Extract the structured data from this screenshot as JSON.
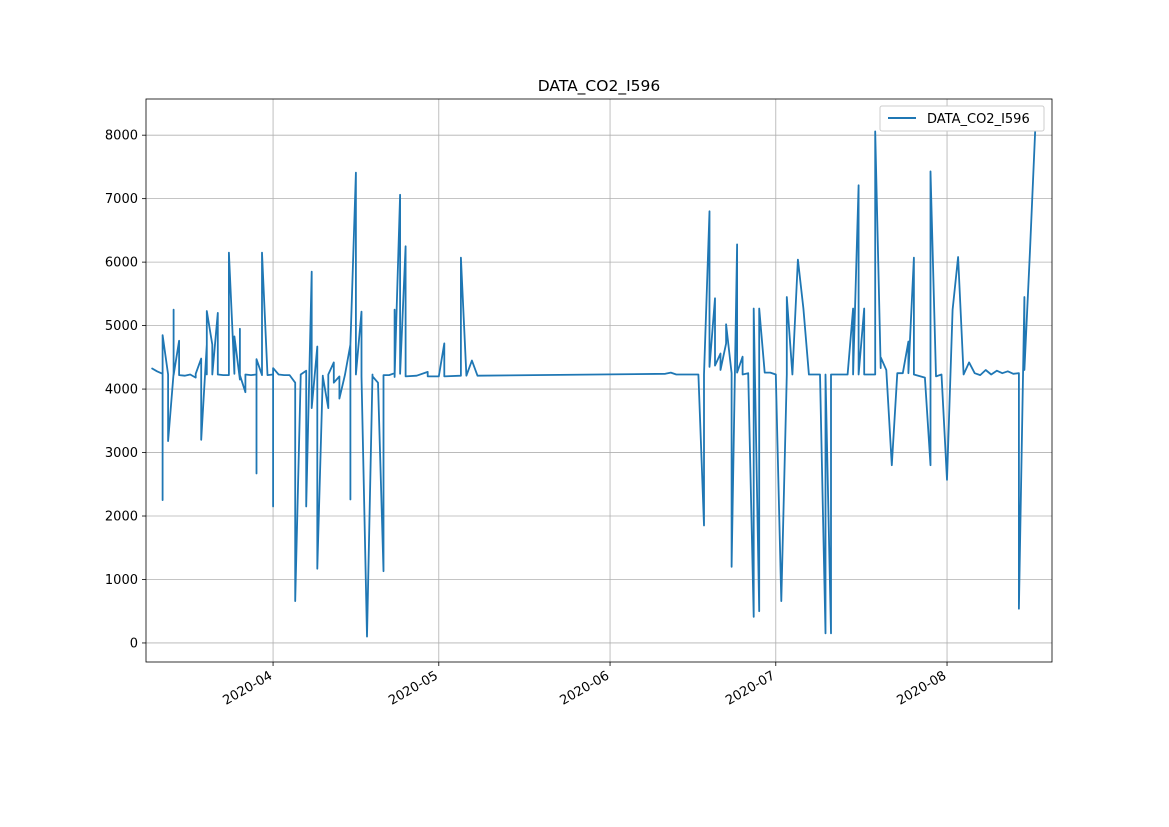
{
  "chart_data": {
    "type": "line",
    "title": "DATA_CO2_I596",
    "xlabel": "",
    "ylabel": "",
    "legend": {
      "placement": "top-right",
      "entries": [
        "DATA_CO2_I596"
      ]
    },
    "grid": true,
    "x_axis": {
      "type": "date",
      "range": [
        "2020-03-09",
        "2020-08-20"
      ],
      "ticks": [
        "2020-04-01",
        "2020-05-01",
        "2020-06-01",
        "2020-07-01",
        "2020-08-01"
      ],
      "tick_labels": [
        "2020-04",
        "2020-05",
        "2020-06",
        "2020-07",
        "2020-08"
      ]
    },
    "y_axis": {
      "range": [
        -300,
        8570
      ],
      "ticks": [
        0,
        1000,
        2000,
        3000,
        4000,
        5000,
        6000,
        7000,
        8000
      ],
      "tick_labels": [
        "0",
        "1000",
        "2000",
        "3000",
        "4000",
        "5000",
        "6000",
        "7000",
        "8000"
      ]
    },
    "series": [
      {
        "name": "DATA_CO2_I596",
        "color": "#1f77b4",
        "points": [
          [
            "2020-03-10",
            4330
          ],
          [
            "2020-03-11",
            4280
          ],
          [
            "2020-03-12",
            4240
          ],
          [
            "2020-03-12",
            2250
          ],
          [
            "2020-03-12",
            4850
          ],
          [
            "2020-03-13",
            4230
          ],
          [
            "2020-03-13",
            3180
          ],
          [
            "2020-03-14",
            4250
          ],
          [
            "2020-03-14",
            5250
          ],
          [
            "2020-03-14",
            4220
          ],
          [
            "2020-03-15",
            4760
          ],
          [
            "2020-03-15",
            4220
          ],
          [
            "2020-03-16",
            4210
          ],
          [
            "2020-03-17",
            4230
          ],
          [
            "2020-03-18",
            4180
          ],
          [
            "2020-03-18",
            4240
          ],
          [
            "2020-03-19",
            4480
          ],
          [
            "2020-03-19",
            3200
          ],
          [
            "2020-03-20",
            4700
          ],
          [
            "2020-03-20",
            4230
          ],
          [
            "2020-03-20",
            5230
          ],
          [
            "2020-03-21",
            4700
          ],
          [
            "2020-03-21",
            4230
          ],
          [
            "2020-03-22",
            5200
          ],
          [
            "2020-03-22",
            4230
          ],
          [
            "2020-03-23",
            4220
          ],
          [
            "2020-03-24",
            4220
          ],
          [
            "2020-03-24",
            6150
          ],
          [
            "2020-03-25",
            4240
          ],
          [
            "2020-03-25",
            4830
          ],
          [
            "2020-03-26",
            4150
          ],
          [
            "2020-03-26",
            4950
          ],
          [
            "2020-03-26",
            4220
          ],
          [
            "2020-03-27",
            3950
          ],
          [
            "2020-03-27",
            4230
          ],
          [
            "2020-03-28",
            4220
          ],
          [
            "2020-03-29",
            4230
          ],
          [
            "2020-03-29",
            2670
          ],
          [
            "2020-03-29",
            4470
          ],
          [
            "2020-03-30",
            4220
          ],
          [
            "2020-03-30",
            6150
          ],
          [
            "2020-03-31",
            4220
          ],
          [
            "2020-04-01",
            4230
          ],
          [
            "2020-04-01",
            2150
          ],
          [
            "2020-04-01",
            4330
          ],
          [
            "2020-04-02",
            4230
          ],
          [
            "2020-04-03",
            4220
          ],
          [
            "2020-04-04",
            4220
          ],
          [
            "2020-04-05",
            4100
          ],
          [
            "2020-04-05",
            660
          ],
          [
            "2020-04-06",
            4200
          ],
          [
            "2020-04-06",
            4230
          ],
          [
            "2020-04-07",
            4290
          ],
          [
            "2020-04-07",
            2150
          ],
          [
            "2020-04-08",
            5850
          ],
          [
            "2020-04-08",
            3700
          ],
          [
            "2020-04-09",
            4670
          ],
          [
            "2020-04-09",
            1170
          ],
          [
            "2020-04-10",
            4210
          ],
          [
            "2020-04-10",
            4200
          ],
          [
            "2020-04-11",
            3700
          ],
          [
            "2020-04-11",
            4230
          ],
          [
            "2020-04-12",
            4420
          ],
          [
            "2020-04-12",
            4100
          ],
          [
            "2020-04-13",
            4200
          ],
          [
            "2020-04-13",
            3850
          ],
          [
            "2020-04-14",
            4220
          ],
          [
            "2020-04-15",
            4700
          ],
          [
            "2020-04-15",
            2260
          ],
          [
            "2020-04-15",
            4700
          ],
          [
            "2020-04-16",
            7410
          ],
          [
            "2020-04-16",
            4230
          ],
          [
            "2020-04-17",
            5220
          ],
          [
            "2020-04-17",
            4200
          ],
          [
            "2020-04-18",
            100
          ],
          [
            "2020-04-19",
            4230
          ],
          [
            "2020-04-19",
            4200
          ],
          [
            "2020-04-20",
            4100
          ],
          [
            "2020-04-21",
            1130
          ],
          [
            "2020-04-21",
            4220
          ],
          [
            "2020-04-22",
            4220
          ],
          [
            "2020-04-23",
            4250
          ],
          [
            "2020-04-23",
            5250
          ],
          [
            "2020-04-23",
            4190
          ],
          [
            "2020-04-24",
            7060
          ],
          [
            "2020-04-24",
            4240
          ],
          [
            "2020-04-25",
            6250
          ],
          [
            "2020-04-25",
            4200
          ],
          [
            "2020-04-27",
            4210
          ],
          [
            "2020-04-29",
            4270
          ],
          [
            "2020-04-29",
            4200
          ],
          [
            "2020-05-01",
            4200
          ],
          [
            "2020-05-02",
            4720
          ],
          [
            "2020-05-02",
            4200
          ],
          [
            "2020-05-05",
            4210
          ],
          [
            "2020-05-05",
            6070
          ],
          [
            "2020-05-06",
            4210
          ],
          [
            "2020-05-07",
            4450
          ],
          [
            "2020-05-08",
            4210
          ],
          [
            "2020-06-11",
            4240
          ],
          [
            "2020-06-12",
            4260
          ],
          [
            "2020-06-13",
            4230
          ],
          [
            "2020-06-15",
            4230
          ],
          [
            "2020-06-17",
            4230
          ],
          [
            "2020-06-18",
            1850
          ],
          [
            "2020-06-18",
            4230
          ],
          [
            "2020-06-19",
            6800
          ],
          [
            "2020-06-19",
            4350
          ],
          [
            "2020-06-20",
            5430
          ],
          [
            "2020-06-20",
            4370
          ],
          [
            "2020-06-21",
            4560
          ],
          [
            "2020-06-21",
            4300
          ],
          [
            "2020-06-22",
            4720
          ],
          [
            "2020-06-22",
            5020
          ],
          [
            "2020-06-23",
            4250
          ],
          [
            "2020-06-23",
            1200
          ],
          [
            "2020-06-24",
            6280
          ],
          [
            "2020-06-24",
            4260
          ],
          [
            "2020-06-25",
            4510
          ],
          [
            "2020-06-25",
            4230
          ],
          [
            "2020-06-26",
            4250
          ],
          [
            "2020-06-27",
            410
          ],
          [
            "2020-06-27",
            5270
          ],
          [
            "2020-06-28",
            500
          ],
          [
            "2020-06-28",
            5270
          ],
          [
            "2020-06-29",
            4260
          ],
          [
            "2020-06-30",
            4260
          ],
          [
            "2020-07-01",
            4230
          ],
          [
            "2020-07-02",
            660
          ],
          [
            "2020-07-03",
            4230
          ],
          [
            "2020-07-03",
            5450
          ],
          [
            "2020-07-04",
            4230
          ],
          [
            "2020-07-05",
            6040
          ],
          [
            "2020-07-06",
            5270
          ],
          [
            "2020-07-07",
            4230
          ],
          [
            "2020-07-09",
            4230
          ],
          [
            "2020-07-10",
            150
          ],
          [
            "2020-07-10",
            4230
          ],
          [
            "2020-07-11",
            150
          ],
          [
            "2020-07-11",
            4230
          ],
          [
            "2020-07-13",
            4230
          ],
          [
            "2020-07-14",
            4230
          ],
          [
            "2020-07-15",
            5270
          ],
          [
            "2020-07-15",
            4230
          ],
          [
            "2020-07-16",
            7210
          ],
          [
            "2020-07-16",
            4230
          ],
          [
            "2020-07-17",
            5270
          ],
          [
            "2020-07-17",
            4230
          ],
          [
            "2020-07-19",
            4230
          ],
          [
            "2020-07-19",
            8060
          ],
          [
            "2020-07-20",
            4330
          ],
          [
            "2020-07-20",
            4500
          ],
          [
            "2020-07-21",
            4300
          ],
          [
            "2020-07-22",
            2800
          ],
          [
            "2020-07-23",
            4250
          ],
          [
            "2020-07-24",
            4250
          ],
          [
            "2020-07-25",
            4750
          ],
          [
            "2020-07-25",
            4250
          ],
          [
            "2020-07-26",
            6070
          ],
          [
            "2020-07-26",
            4230
          ],
          [
            "2020-07-28",
            4180
          ],
          [
            "2020-07-29",
            2800
          ],
          [
            "2020-07-29",
            7430
          ],
          [
            "2020-07-30",
            4200
          ],
          [
            "2020-07-31",
            4230
          ],
          [
            "2020-08-01",
            2570
          ],
          [
            "2020-08-02",
            5250
          ],
          [
            "2020-08-03",
            6080
          ],
          [
            "2020-08-04",
            4230
          ],
          [
            "2020-08-05",
            4420
          ],
          [
            "2020-08-06",
            4250
          ],
          [
            "2020-08-07",
            4220
          ],
          [
            "2020-08-08",
            4300
          ],
          [
            "2020-08-09",
            4230
          ],
          [
            "2020-08-10",
            4290
          ],
          [
            "2020-08-11",
            4250
          ],
          [
            "2020-08-12",
            4280
          ],
          [
            "2020-08-13",
            4240
          ],
          [
            "2020-08-14",
            4250
          ],
          [
            "2020-08-14",
            540
          ],
          [
            "2020-08-15",
            5450
          ],
          [
            "2020-08-15",
            4300
          ],
          [
            "2020-08-16",
            6150
          ],
          [
            "2020-08-17",
            8150
          ]
        ]
      }
    ]
  }
}
